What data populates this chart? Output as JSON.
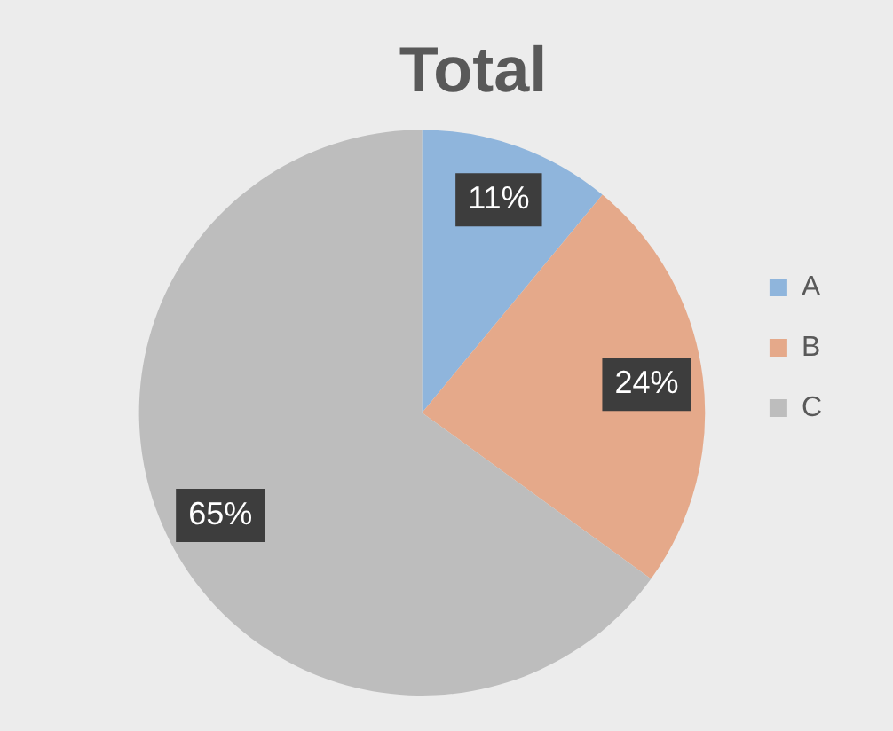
{
  "chart_data": {
    "type": "pie",
    "title": "Total",
    "categories": [
      "A",
      "B",
      "C"
    ],
    "values": [
      11,
      24,
      65
    ],
    "colors": [
      "#8fb5dc",
      "#e5a98a",
      "#bdbdbd"
    ],
    "value_labels": [
      "11%",
      "24%",
      "65%"
    ],
    "legend": "right"
  }
}
